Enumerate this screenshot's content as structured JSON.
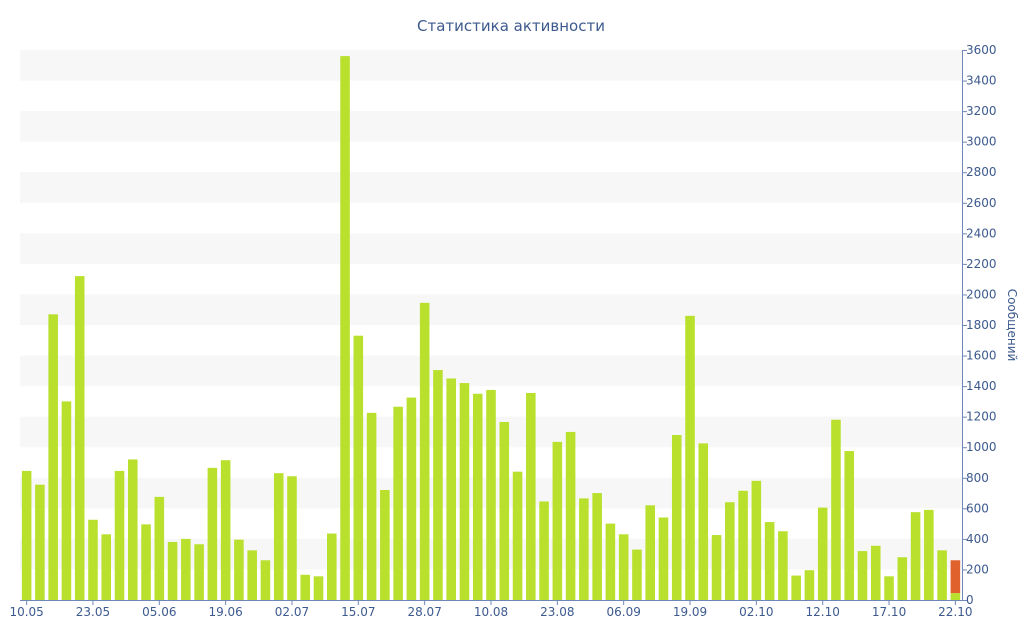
{
  "chart_data": {
    "type": "bar",
    "title": "Статистика активности",
    "xlabel": "",
    "ylabel": "Сообщений",
    "ylim": [
      0,
      3600
    ],
    "y_ticks": [
      0,
      200,
      400,
      600,
      800,
      1000,
      1200,
      1400,
      1600,
      1800,
      2000,
      2200,
      2400,
      2600,
      2800,
      3000,
      3200,
      3400,
      3600
    ],
    "y_axis_side": "right",
    "grid": "alternating horizontal bands",
    "x_tick_labels": [
      {
        "label": "10.05",
        "index": 0
      },
      {
        "label": "23.05",
        "index": 5
      },
      {
        "label": "05.06",
        "index": 10
      },
      {
        "label": "19.06",
        "index": 15
      },
      {
        "label": "02.07",
        "index": 20
      },
      {
        "label": "15.07",
        "index": 25
      },
      {
        "label": "28.07",
        "index": 30
      },
      {
        "label": "10.08",
        "index": 35
      },
      {
        "label": "23.08",
        "index": 40
      },
      {
        "label": "06.09",
        "index": 45
      },
      {
        "label": "19.09",
        "index": 50
      },
      {
        "label": "02.10",
        "index": 55
      },
      {
        "label": "12.10",
        "index": 60
      },
      {
        "label": "17.10",
        "index": 65
      },
      {
        "label": "22.10",
        "index": 70
      }
    ],
    "series": [
      {
        "color": "#b8e02c",
        "values": [
          845,
          755,
          1870,
          1300,
          2120,
          525,
          430,
          845,
          920,
          495,
          675,
          380,
          400,
          365,
          865,
          915,
          395,
          325,
          260,
          830,
          810,
          165,
          155,
          435,
          3560,
          1730,
          1225,
          720,
          1265,
          1325,
          1945,
          1505,
          1450,
          1420,
          1350,
          1375,
          1165,
          840,
          1355,
          645,
          1035,
          1100,
          665,
          700,
          500,
          430,
          330,
          620,
          540,
          1080,
          1860,
          1025,
          425,
          640,
          715,
          780,
          510,
          450,
          160,
          195,
          605,
          1180,
          975,
          320,
          355,
          155,
          280,
          575,
          590,
          325,
          45
        ]
      },
      {
        "color": "#e0612c",
        "values": [
          0,
          0,
          0,
          0,
          0,
          0,
          0,
          0,
          0,
          0,
          0,
          0,
          0,
          0,
          0,
          0,
          0,
          0,
          0,
          0,
          0,
          0,
          0,
          0,
          0,
          0,
          0,
          0,
          0,
          0,
          0,
          0,
          0,
          0,
          0,
          0,
          0,
          0,
          0,
          0,
          0,
          0,
          0,
          0,
          0,
          0,
          0,
          0,
          0,
          0,
          0,
          0,
          0,
          0,
          0,
          0,
          0,
          0,
          0,
          0,
          0,
          0,
          0,
          0,
          0,
          0,
          0,
          0,
          0,
          0,
          215
        ]
      }
    ]
  }
}
